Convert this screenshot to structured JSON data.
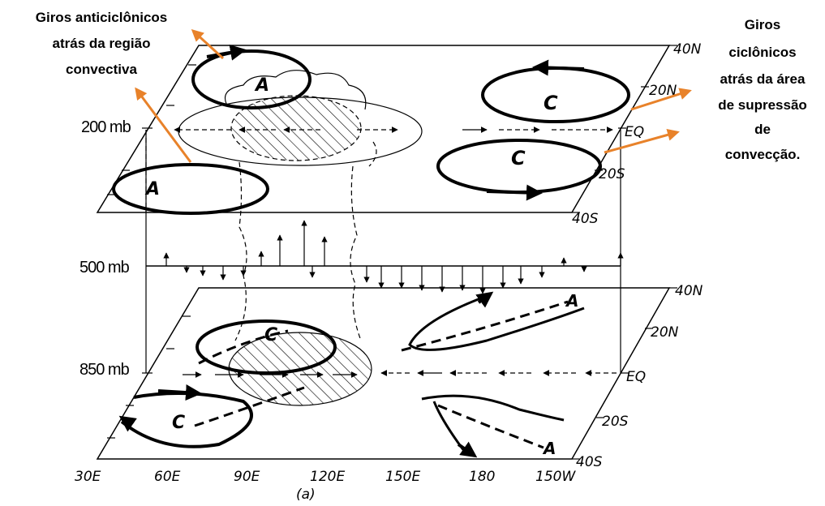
{
  "annotations": {
    "left": [
      "Giros anticiclônicos",
      "atrás da região",
      "convectiva"
    ],
    "right": [
      "Giros",
      "ciclônicos",
      "atrás da área",
      "de supressão",
      "de",
      "convecção."
    ]
  },
  "levels": {
    "top": "200 mb",
    "mid": "500 mb",
    "bottom": "850 mb"
  },
  "latitudes": {
    "top": [
      "40N",
      "20N",
      "EQ",
      "20S",
      "40S"
    ],
    "bottom": [
      "40N",
      "20N",
      "EQ",
      "20S",
      "40S"
    ]
  },
  "longitudes": [
    "30E",
    "60E",
    "90E",
    "120E",
    "150E",
    "180",
    "150W"
  ],
  "panel_label": "(a)",
  "circulation_labels": {
    "top_A_upper": "A",
    "top_A_lower": "A",
    "top_C_upper": "C",
    "top_C_lower": "C",
    "bot_C_upper": "C",
    "bot_C_lower": "C",
    "bot_A_upper": "A",
    "bot_A_lower": "A"
  },
  "colors": {
    "annotation_arrow": "#E8822A",
    "line": "#000000"
  }
}
